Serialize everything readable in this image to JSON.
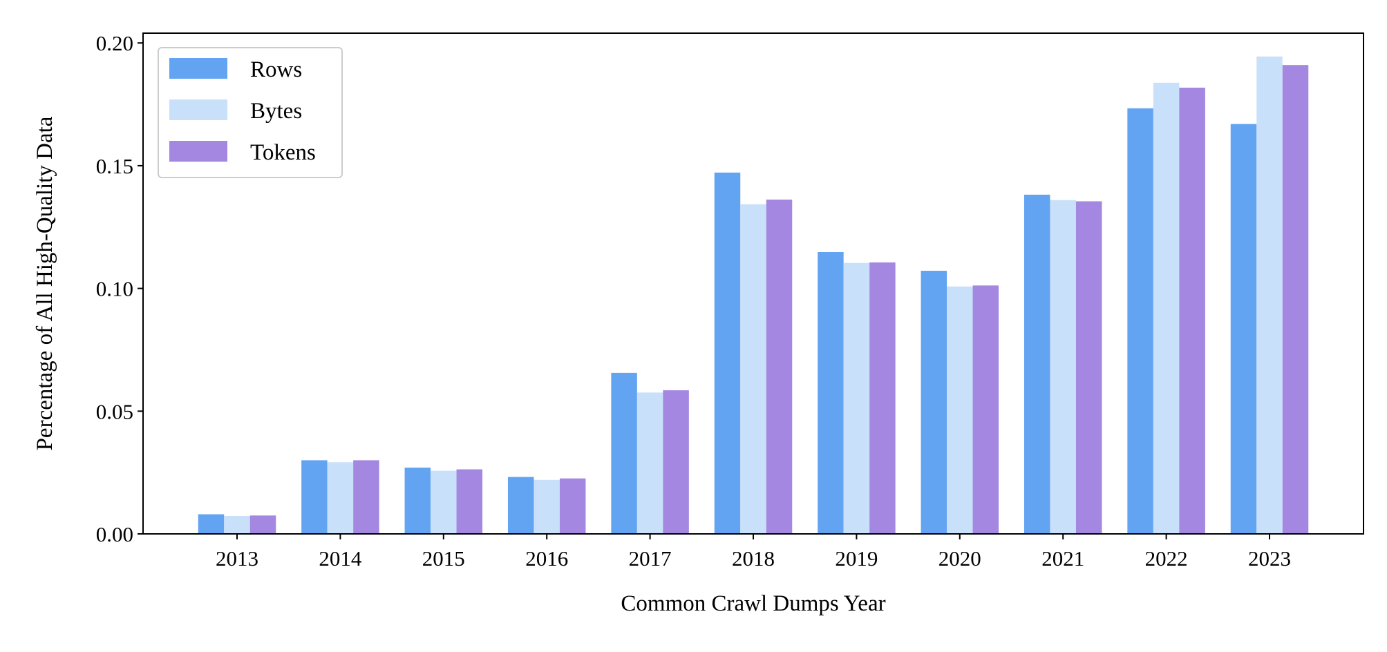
{
  "chart_data": {
    "type": "bar",
    "categories": [
      "2013",
      "2014",
      "2015",
      "2016",
      "2017",
      "2018",
      "2019",
      "2020",
      "2021",
      "2022",
      "2023"
    ],
    "series": [
      {
        "name": "Rows",
        "color": "#63a4f2",
        "values": [
          0.008,
          0.03,
          0.027,
          0.0232,
          0.0656,
          0.1472,
          0.1148,
          0.1072,
          0.1382,
          0.1734,
          0.167
        ]
      },
      {
        "name": "Bytes",
        "color": "#c9e0fa",
        "values": [
          0.0073,
          0.0292,
          0.0257,
          0.022,
          0.0576,
          0.1343,
          0.1104,
          0.1008,
          0.136,
          0.1838,
          0.1945
        ]
      },
      {
        "name": "Tokens",
        "color": "#a387e1",
        "values": [
          0.0075,
          0.03,
          0.0263,
          0.0226,
          0.0585,
          0.1362,
          0.1106,
          0.1012,
          0.1355,
          0.1818,
          0.191
        ]
      }
    ],
    "xlabel": "Common Crawl Dumps Year",
    "ylabel": "Percentage of All High-Quality Data",
    "ylim": [
      0,
      0.204
    ],
    "yticks": [
      "0.00",
      "0.05",
      "0.10",
      "0.15",
      "0.20"
    ],
    "ytick_values": [
      0,
      0.05,
      0.1,
      0.15,
      0.2
    ],
    "grid": false,
    "legend_position": "top-left"
  }
}
